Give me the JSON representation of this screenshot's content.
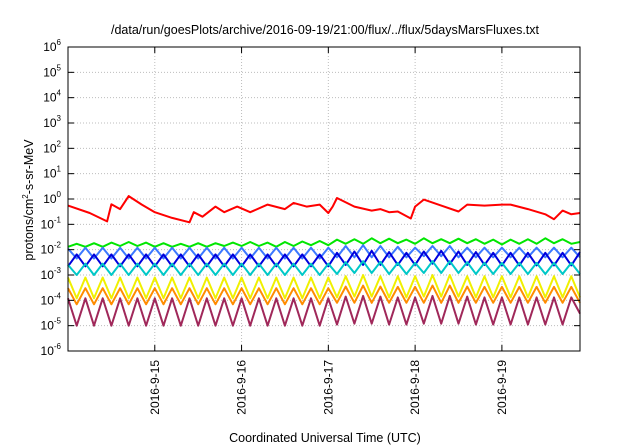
{
  "chart_data": {
    "type": "line",
    "title": "/data/run/goesPlots/archive/2016-09-19/21:00/flux/../flux/5daysMarsFluxes.txt",
    "xlabel": "Coordinated Universal Time (UTC)",
    "ylabel": "protons/cm²-s-sr-MeV",
    "y_scale": "log",
    "ylim": [
      1e-06,
      1000000
    ],
    "xlim": [
      14.0,
      19.9
    ],
    "x_tick_values": [
      15,
      16,
      17,
      18,
      19
    ],
    "x_tick_labels": [
      "2016-9-15",
      "2016-9-16",
      "2016-9-17",
      "2016-9-18",
      "2016-9-19"
    ],
    "y_ticks": [
      {
        "value": 1e-06,
        "base": "10",
        "exp": "-6"
      },
      {
        "value": 1e-05,
        "base": "10",
        "exp": "-5"
      },
      {
        "value": 0.0001,
        "base": "10",
        "exp": "-4"
      },
      {
        "value": 0.001,
        "base": "10",
        "exp": "-3"
      },
      {
        "value": 0.01,
        "base": "10",
        "exp": "-2"
      },
      {
        "value": 0.1,
        "base": "10",
        "exp": "-1"
      },
      {
        "value": 1,
        "base": "10",
        "exp": "0"
      },
      {
        "value": 10,
        "base": "10",
        "exp": "1"
      },
      {
        "value": 100,
        "base": "10",
        "exp": "2"
      },
      {
        "value": 1000,
        "base": "10",
        "exp": "3"
      },
      {
        "value": 10000,
        "base": "10",
        "exp": "4"
      },
      {
        "value": 100000,
        "base": "10",
        "exp": "5"
      },
      {
        "value": 1000000,
        "base": "10",
        "exp": "6"
      }
    ],
    "grid": true,
    "series": [
      {
        "color": "#ff0000",
        "x": [
          14.0,
          14.25,
          14.45,
          14.5,
          14.6,
          14.7,
          14.85,
          15.0,
          15.2,
          15.4,
          15.45,
          15.55,
          15.7,
          15.8,
          15.95,
          16.1,
          16.3,
          16.5,
          16.6,
          16.75,
          16.9,
          17.0,
          17.05,
          17.1,
          17.3,
          17.5,
          17.6,
          17.7,
          17.8,
          17.95,
          18.0,
          18.1,
          18.3,
          18.5,
          18.6,
          18.8,
          19.0,
          19.1,
          19.3,
          19.5,
          19.6,
          19.7,
          19.8,
          19.9
        ],
        "y": [
          0.55,
          0.28,
          0.13,
          0.62,
          0.4,
          1.3,
          0.6,
          0.3,
          0.18,
          0.12,
          0.3,
          0.2,
          0.5,
          0.3,
          0.5,
          0.3,
          0.6,
          0.4,
          0.7,
          0.5,
          0.6,
          0.28,
          0.5,
          1.1,
          0.5,
          0.35,
          0.4,
          0.3,
          0.32,
          0.17,
          0.5,
          0.95,
          0.55,
          0.32,
          0.6,
          0.55,
          0.6,
          0.6,
          0.4,
          0.25,
          0.16,
          0.35,
          0.25,
          0.28
        ]
      },
      {
        "color": "#00e600",
        "x": [
          14.0,
          14.1,
          14.2,
          14.3,
          14.4,
          14.5,
          14.6,
          14.7,
          14.8,
          14.9,
          15.0,
          15.1,
          15.2,
          15.3,
          15.4,
          15.5,
          15.6,
          15.7,
          15.8,
          15.9,
          16.0,
          16.1,
          16.2,
          16.3,
          16.4,
          16.5,
          16.6,
          16.7,
          16.8,
          16.9,
          17.0,
          17.1,
          17.2,
          17.3,
          17.4,
          17.5,
          17.6,
          17.7,
          17.8,
          17.9,
          18.0,
          18.1,
          18.2,
          18.3,
          18.4,
          18.5,
          18.6,
          18.7,
          18.8,
          18.9,
          19.0,
          19.1,
          19.2,
          19.3,
          19.4,
          19.5,
          19.6,
          19.7,
          19.8,
          19.9
        ],
        "y": [
          0.013,
          0.017,
          0.013,
          0.018,
          0.013,
          0.019,
          0.014,
          0.02,
          0.014,
          0.019,
          0.013,
          0.018,
          0.013,
          0.017,
          0.013,
          0.018,
          0.013,
          0.018,
          0.014,
          0.019,
          0.014,
          0.02,
          0.014,
          0.019,
          0.013,
          0.02,
          0.014,
          0.021,
          0.015,
          0.022,
          0.015,
          0.025,
          0.017,
          0.026,
          0.017,
          0.028,
          0.018,
          0.027,
          0.018,
          0.025,
          0.017,
          0.028,
          0.018,
          0.026,
          0.018,
          0.027,
          0.018,
          0.026,
          0.017,
          0.025,
          0.016,
          0.025,
          0.017,
          0.026,
          0.017,
          0.028,
          0.018,
          0.026,
          0.017,
          0.02
        ]
      },
      {
        "color": "#3c78ff",
        "x": [
          14.0,
          14.1,
          14.2,
          14.3,
          14.4,
          14.5,
          14.6,
          14.7,
          14.8,
          14.9,
          15.0,
          15.1,
          15.2,
          15.3,
          15.4,
          15.5,
          15.6,
          15.7,
          15.8,
          15.9,
          16.0,
          16.1,
          16.2,
          16.3,
          16.4,
          16.5,
          16.6,
          16.7,
          16.8,
          16.9,
          17.0,
          17.1,
          17.2,
          17.3,
          17.4,
          17.5,
          17.6,
          17.7,
          17.8,
          17.9,
          18.0,
          18.1,
          18.2,
          18.3,
          18.4,
          18.5,
          18.6,
          18.7,
          18.8,
          18.9,
          19.0,
          19.1,
          19.2,
          19.3,
          19.4,
          19.5,
          19.6,
          19.7,
          19.8,
          19.9
        ],
        "y": [
          0.011,
          0.0045,
          0.012,
          0.0045,
          0.012,
          0.0045,
          0.012,
          0.0045,
          0.012,
          0.0045,
          0.012,
          0.0045,
          0.012,
          0.0045,
          0.012,
          0.0045,
          0.012,
          0.0045,
          0.012,
          0.0045,
          0.012,
          0.0045,
          0.012,
          0.0045,
          0.012,
          0.0045,
          0.012,
          0.0045,
          0.012,
          0.0045,
          0.012,
          0.005,
          0.014,
          0.005,
          0.015,
          0.005,
          0.014,
          0.005,
          0.013,
          0.005,
          0.012,
          0.0055,
          0.014,
          0.0055,
          0.014,
          0.005,
          0.012,
          0.005,
          0.012,
          0.005,
          0.012,
          0.005,
          0.012,
          0.005,
          0.012,
          0.005,
          0.012,
          0.005,
          0.012,
          0.005
        ]
      },
      {
        "color": "#0000dc",
        "x": [
          14.0,
          14.1,
          14.2,
          14.3,
          14.4,
          14.5,
          14.6,
          14.7,
          14.8,
          14.9,
          15.0,
          15.1,
          15.2,
          15.3,
          15.4,
          15.5,
          15.6,
          15.7,
          15.8,
          15.9,
          16.0,
          16.1,
          16.2,
          16.3,
          16.4,
          16.5,
          16.6,
          16.7,
          16.8,
          16.9,
          17.0,
          17.1,
          17.2,
          17.3,
          17.4,
          17.5,
          17.6,
          17.7,
          17.8,
          17.9,
          18.0,
          18.1,
          18.2,
          18.3,
          18.4,
          18.5,
          18.6,
          18.7,
          18.8,
          18.9,
          19.0,
          19.1,
          19.2,
          19.3,
          19.4,
          19.5,
          19.6,
          19.7,
          19.8,
          19.9
        ],
        "y": [
          0.0022,
          0.0065,
          0.0022,
          0.0065,
          0.0022,
          0.0065,
          0.0022,
          0.0065,
          0.0022,
          0.0065,
          0.0022,
          0.0065,
          0.0022,
          0.0065,
          0.0022,
          0.0065,
          0.0022,
          0.0065,
          0.0022,
          0.0065,
          0.0022,
          0.0065,
          0.0022,
          0.0065,
          0.0022,
          0.0065,
          0.0022,
          0.0065,
          0.0022,
          0.0065,
          0.0022,
          0.0075,
          0.0025,
          0.0085,
          0.0025,
          0.009,
          0.0025,
          0.008,
          0.0025,
          0.0075,
          0.0025,
          0.0085,
          0.0028,
          0.009,
          0.0027,
          0.0085,
          0.0025,
          0.008,
          0.0025,
          0.0075,
          0.0024,
          0.0075,
          0.0024,
          0.0075,
          0.0024,
          0.0075,
          0.0024,
          0.0075,
          0.0024,
          0.008
        ]
      },
      {
        "color": "#00c8c8",
        "x": [
          14.0,
          14.1,
          14.2,
          14.3,
          14.4,
          14.5,
          14.6,
          14.7,
          14.8,
          14.9,
          15.0,
          15.1,
          15.2,
          15.3,
          15.4,
          15.5,
          15.6,
          15.7,
          15.8,
          15.9,
          16.0,
          16.1,
          16.2,
          16.3,
          16.4,
          16.5,
          16.6,
          16.7,
          16.8,
          16.9,
          17.0,
          17.1,
          17.2,
          17.3,
          17.4,
          17.5,
          17.6,
          17.7,
          17.8,
          17.9,
          18.0,
          18.1,
          18.2,
          18.3,
          18.4,
          18.5,
          18.6,
          18.7,
          18.8,
          18.9,
          19.0,
          19.1,
          19.2,
          19.3,
          19.4,
          19.5,
          19.6,
          19.7,
          19.8,
          19.9
        ],
        "y": [
          0.0025,
          0.001,
          0.0028,
          0.001,
          0.0028,
          0.001,
          0.0028,
          0.001,
          0.0028,
          0.001,
          0.0028,
          0.001,
          0.0028,
          0.001,
          0.0028,
          0.001,
          0.0028,
          0.001,
          0.0028,
          0.001,
          0.0028,
          0.001,
          0.0028,
          0.001,
          0.0028,
          0.001,
          0.0028,
          0.001,
          0.0028,
          0.001,
          0.0028,
          0.0011,
          0.0032,
          0.0012,
          0.0035,
          0.0012,
          0.0033,
          0.0011,
          0.003,
          0.0011,
          0.003,
          0.0012,
          0.0035,
          0.0012,
          0.0035,
          0.0012,
          0.0032,
          0.0011,
          0.003,
          0.0011,
          0.003,
          0.0011,
          0.003,
          0.0011,
          0.003,
          0.0011,
          0.003,
          0.0011,
          0.003,
          0.0011
        ]
      },
      {
        "color": "#f0f000",
        "x": [
          14.0,
          14.1,
          14.2,
          14.3,
          14.4,
          14.5,
          14.6,
          14.7,
          14.8,
          14.9,
          15.0,
          15.1,
          15.2,
          15.3,
          15.4,
          15.5,
          15.6,
          15.7,
          15.8,
          15.9,
          16.0,
          16.1,
          16.2,
          16.3,
          16.4,
          16.5,
          16.6,
          16.7,
          16.8,
          16.9,
          17.0,
          17.1,
          17.2,
          17.3,
          17.4,
          17.5,
          17.6,
          17.7,
          17.8,
          17.9,
          18.0,
          18.1,
          18.2,
          18.3,
          18.4,
          18.5,
          18.6,
          18.7,
          18.8,
          18.9,
          19.0,
          19.1,
          19.2,
          19.3,
          19.4,
          19.5,
          19.6,
          19.7,
          19.8,
          19.9
        ],
        "y": [
          0.0008,
          0.00012,
          0.0008,
          0.00012,
          0.0008,
          0.00012,
          0.0008,
          0.00012,
          0.0008,
          0.00012,
          0.0008,
          0.00012,
          0.0008,
          0.00012,
          0.0008,
          0.00012,
          0.0008,
          0.00012,
          0.0008,
          0.00012,
          0.0008,
          0.00012,
          0.0008,
          0.00012,
          0.0008,
          0.00012,
          0.0008,
          0.00012,
          0.0008,
          0.00012,
          0.0008,
          0.00013,
          0.0009,
          0.00014,
          0.001,
          0.00014,
          0.0009,
          0.00013,
          0.0009,
          0.00013,
          0.0009,
          0.00014,
          0.001,
          0.00014,
          0.001,
          0.00014,
          0.0009,
          0.00013,
          0.0009,
          0.00013,
          0.0009,
          0.00013,
          0.0009,
          0.00013,
          0.0009,
          0.00013,
          0.0009,
          0.00013,
          0.0009,
          0.00013
        ]
      },
      {
        "color": "#ff8c00",
        "x": [
          14.0,
          14.1,
          14.2,
          14.3,
          14.4,
          14.5,
          14.6,
          14.7,
          14.8,
          14.9,
          15.0,
          15.1,
          15.2,
          15.3,
          15.4,
          15.5,
          15.6,
          15.7,
          15.8,
          15.9,
          16.0,
          16.1,
          16.2,
          16.3,
          16.4,
          16.5,
          16.6,
          16.7,
          16.8,
          16.9,
          17.0,
          17.1,
          17.2,
          17.3,
          17.4,
          17.5,
          17.6,
          17.7,
          17.8,
          17.9,
          18.0,
          18.1,
          18.2,
          18.3,
          18.4,
          18.5,
          18.6,
          18.7,
          18.8,
          18.9,
          19.0,
          19.1,
          19.2,
          19.3,
          19.4,
          19.5,
          19.6,
          19.7,
          19.8,
          19.9
        ],
        "y": [
          0.0003,
          7e-05,
          0.0003,
          7e-05,
          0.0003,
          7e-05,
          0.0003,
          7e-05,
          0.0003,
          7e-05,
          0.0003,
          7e-05,
          0.0003,
          7e-05,
          0.0003,
          7e-05,
          0.0003,
          7e-05,
          0.0003,
          7e-05,
          0.0003,
          7e-05,
          0.0003,
          7e-05,
          0.0003,
          7e-05,
          0.0003,
          7e-05,
          0.0003,
          7e-05,
          0.0003,
          8e-05,
          0.00035,
          8e-05,
          0.00038,
          8e-05,
          0.00035,
          8e-05,
          0.00034,
          8e-05,
          0.00034,
          8e-05,
          0.00038,
          8e-05,
          0.00038,
          8e-05,
          0.00035,
          8e-05,
          0.00034,
          8e-05,
          0.00034,
          8e-05,
          0.00034,
          8e-05,
          0.00034,
          8e-05,
          0.00034,
          8e-05,
          0.00034,
          8e-05
        ]
      },
      {
        "color": "#a0285a",
        "x": [
          14.0,
          14.1,
          14.2,
          14.3,
          14.4,
          14.5,
          14.6,
          14.7,
          14.8,
          14.9,
          15.0,
          15.1,
          15.2,
          15.3,
          15.4,
          15.5,
          15.6,
          15.7,
          15.8,
          15.9,
          16.0,
          16.1,
          16.2,
          16.3,
          16.4,
          16.5,
          16.6,
          16.7,
          16.8,
          16.9,
          17.0,
          17.1,
          17.2,
          17.3,
          17.4,
          17.5,
          17.6,
          17.7,
          17.8,
          17.9,
          18.0,
          18.1,
          18.2,
          18.3,
          18.4,
          18.5,
          18.6,
          18.7,
          18.8,
          18.9,
          19.0,
          19.1,
          19.2,
          19.3,
          19.4,
          19.5,
          19.6,
          19.7,
          19.8,
          19.9
        ],
        "y": [
          0.00012,
          1e-05,
          0.00012,
          1e-05,
          0.00012,
          1e-05,
          0.00012,
          1e-05,
          0.00012,
          1e-05,
          0.00012,
          1e-05,
          0.00012,
          1e-05,
          0.00012,
          1e-05,
          0.00012,
          1e-05,
          0.00012,
          1e-05,
          0.00012,
          1e-05,
          0.00012,
          1e-05,
          0.00012,
          1e-05,
          0.00012,
          1e-05,
          0.00012,
          1e-05,
          0.00012,
          1.1e-05,
          0.00014,
          1.2e-05,
          0.00015,
          1.2e-05,
          0.00014,
          1.1e-05,
          0.00013,
          1.1e-05,
          0.00013,
          1.2e-05,
          0.00015,
          1.2e-05,
          0.00015,
          1.2e-05,
          0.00014,
          1.1e-05,
          0.00013,
          1.1e-05,
          0.00013,
          1.1e-05,
          0.00013,
          1.1e-05,
          0.00013,
          1.1e-05,
          0.00013,
          1.1e-05,
          0.00013,
          3e-05
        ]
      }
    ]
  }
}
